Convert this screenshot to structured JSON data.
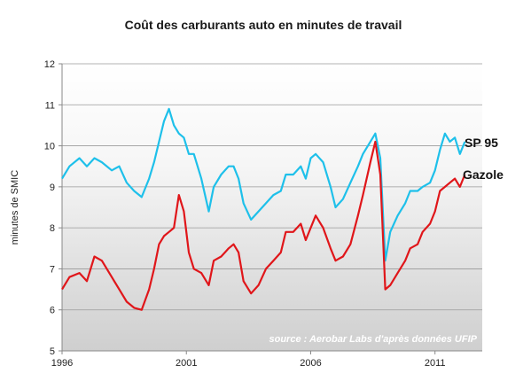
{
  "chart_data": {
    "type": "line",
    "title": "Coût des carburants auto en minutes de travail",
    "ylabel": "minutes de SMIC",
    "xlabel": "",
    "xlim": [
      1996.0,
      2012.9
    ],
    "ylim": [
      5,
      12
    ],
    "x_ticks": [
      1996,
      2001,
      2006,
      2011
    ],
    "y_ticks": [
      5,
      6,
      7,
      8,
      9,
      10,
      11,
      12
    ],
    "grid": "horizontal",
    "background": "gradient white to light grey",
    "annotation": "source : Aerobar Labs d'après données UFIP",
    "series": [
      {
        "name": "SP 95",
        "color": "#1ec0ea",
        "x": [
          1996.0,
          1996.3,
          1996.7,
          1997.0,
          1997.3,
          1997.6,
          1998.0,
          1998.3,
          1998.6,
          1998.9,
          1999.2,
          1999.5,
          1999.7,
          1999.9,
          2000.1,
          2000.3,
          2000.5,
          2000.7,
          2000.9,
          2001.1,
          2001.3,
          2001.6,
          2001.9,
          2002.1,
          2002.4,
          2002.7,
          2002.9,
          2003.1,
          2003.3,
          2003.6,
          2003.9,
          2004.2,
          2004.5,
          2004.8,
          2005.0,
          2005.3,
          2005.6,
          2005.8,
          2006.0,
          2006.2,
          2006.5,
          2006.8,
          2007.0,
          2007.3,
          2007.6,
          2007.9,
          2008.1,
          2008.4,
          2008.6,
          2008.8,
          2009.0,
          2009.2,
          2009.5,
          2009.8,
          2010.0,
          2010.3,
          2010.5,
          2010.8,
          2011.0,
          2011.2,
          2011.4,
          2011.6,
          2011.8,
          2012.0,
          2012.2
        ],
        "values": [
          9.2,
          9.5,
          9.7,
          9.5,
          9.7,
          9.6,
          9.4,
          9.5,
          9.1,
          8.9,
          8.75,
          9.2,
          9.6,
          10.1,
          10.6,
          10.9,
          10.5,
          10.3,
          10.2,
          9.8,
          9.8,
          9.2,
          8.4,
          9.0,
          9.3,
          9.5,
          9.5,
          9.2,
          8.6,
          8.2,
          8.4,
          8.6,
          8.8,
          8.9,
          9.3,
          9.3,
          9.5,
          9.2,
          9.7,
          9.8,
          9.6,
          9.0,
          8.5,
          8.7,
          9.1,
          9.5,
          9.8,
          10.1,
          10.3,
          9.7,
          7.2,
          7.9,
          8.3,
          8.6,
          8.9,
          8.9,
          9.0,
          9.1,
          9.4,
          9.9,
          10.3,
          10.1,
          10.2,
          9.8,
          10.1
        ]
      },
      {
        "name": "Gazole",
        "color": "#e0161a",
        "x": [
          1996.0,
          1996.3,
          1996.7,
          1997.0,
          1997.3,
          1997.6,
          1998.0,
          1998.3,
          1998.6,
          1998.9,
          1999.2,
          1999.5,
          1999.7,
          1999.9,
          2000.1,
          2000.3,
          2000.5,
          2000.7,
          2000.9,
          2001.1,
          2001.3,
          2001.6,
          2001.9,
          2002.1,
          2002.4,
          2002.7,
          2002.9,
          2003.1,
          2003.3,
          2003.6,
          2003.9,
          2004.2,
          2004.5,
          2004.8,
          2005.0,
          2005.3,
          2005.6,
          2005.8,
          2006.0,
          2006.2,
          2006.5,
          2006.8,
          2007.0,
          2007.3,
          2007.6,
          2007.9,
          2008.1,
          2008.4,
          2008.6,
          2008.8,
          2009.0,
          2009.2,
          2009.5,
          2009.8,
          2010.0,
          2010.3,
          2010.5,
          2010.8,
          2011.0,
          2011.2,
          2011.4,
          2011.6,
          2011.8,
          2012.0,
          2012.2
        ],
        "values": [
          6.5,
          6.8,
          6.9,
          6.7,
          7.3,
          7.2,
          6.8,
          6.5,
          6.2,
          6.05,
          6.0,
          6.5,
          7.0,
          7.6,
          7.8,
          7.9,
          8.0,
          8.8,
          8.4,
          7.4,
          7.0,
          6.9,
          6.6,
          7.2,
          7.3,
          7.5,
          7.6,
          7.4,
          6.7,
          6.4,
          6.6,
          7.0,
          7.2,
          7.4,
          7.9,
          7.9,
          8.1,
          7.7,
          8.0,
          8.3,
          8.0,
          7.5,
          7.2,
          7.3,
          7.6,
          8.3,
          8.8,
          9.6,
          10.1,
          9.3,
          6.5,
          6.6,
          6.9,
          7.2,
          7.5,
          7.6,
          7.9,
          8.1,
          8.4,
          8.9,
          9.0,
          9.1,
          9.2,
          9.0,
          9.3
        ]
      }
    ]
  }
}
